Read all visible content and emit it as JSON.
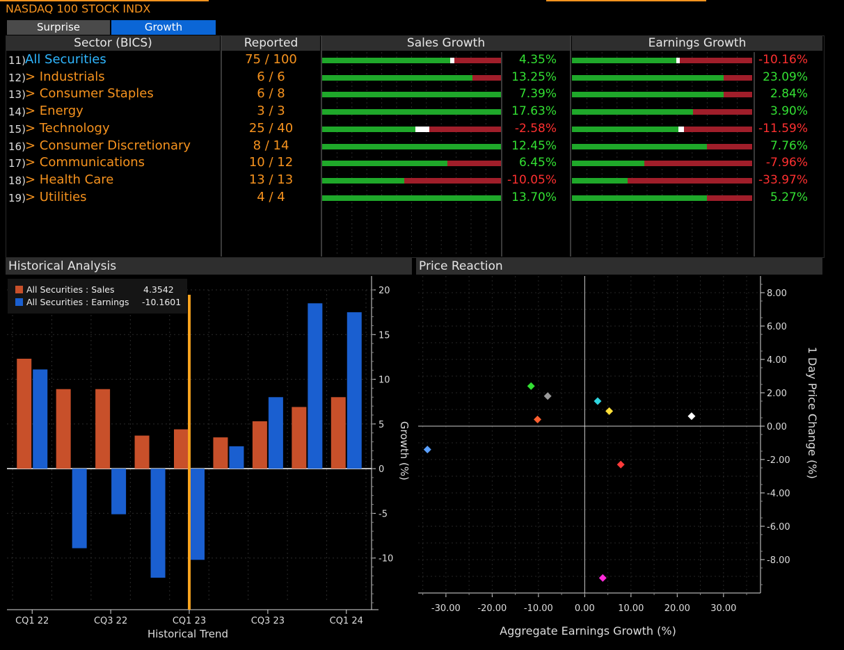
{
  "window": {
    "title": "NASDAQ 100 STOCK INDX"
  },
  "tabs": [
    {
      "label": "Surprise",
      "active": false
    },
    {
      "label": "Growth",
      "active": true
    }
  ],
  "table": {
    "headers": {
      "sector": "Sector (BICS)",
      "reported": "Reported",
      "sales": "Sales Growth",
      "earnings": "Earnings Growth"
    },
    "rows": [
      {
        "num": "11)",
        "name": "All Securities",
        "reported": "75 / 100",
        "sales": "4.35%",
        "sales_frac": 0.74,
        "sales_pos": true,
        "earn": "-10.16%",
        "earn_frac": 0.6,
        "earn_pos": false,
        "marker_s": true,
        "marker_e": true
      },
      {
        "num": "12)",
        "name": "> Industrials",
        "reported": "6 / 6",
        "sales": "13.25%",
        "sales_frac": 0.84,
        "sales_pos": true,
        "earn": "23.09%",
        "earn_frac": 0.84,
        "earn_pos": true
      },
      {
        "num": "13)",
        "name": "> Consumer Staples",
        "reported": "6 / 8",
        "sales": "7.39%",
        "sales_frac": 1.0,
        "sales_pos": true,
        "earn": "2.84%",
        "earn_frac": 0.84,
        "earn_pos": true
      },
      {
        "num": "14)",
        "name": "> Energy",
        "reported": "3 / 3",
        "sales": "17.63%",
        "sales_frac": 1.0,
        "sales_pos": true,
        "earn": "3.90%",
        "earn_frac": 0.67,
        "earn_pos": true
      },
      {
        "num": "15)",
        "name": "> Technology",
        "reported": "25 / 40",
        "sales": "-2.58%",
        "sales_frac": 0.6,
        "sales_pos": false,
        "earn": "-11.59%",
        "earn_frac": 0.62,
        "earn_pos": false,
        "marker_s": true,
        "marker_e": true
      },
      {
        "num": "16)",
        "name": "> Consumer Discretionary",
        "reported": "8 / 14",
        "sales": "12.45%",
        "sales_frac": 1.0,
        "sales_pos": true,
        "earn": "7.76%",
        "earn_frac": 0.75,
        "earn_pos": true
      },
      {
        "num": "17)",
        "name": "> Communications",
        "reported": "10 / 12",
        "sales": "6.45%",
        "sales_frac": 0.7,
        "sales_pos": true,
        "earn": "-7.96%",
        "earn_frac": 0.4,
        "earn_pos": false
      },
      {
        "num": "18)",
        "name": "> Health Care",
        "reported": "13 / 13",
        "sales": "-10.05%",
        "sales_frac": 0.46,
        "sales_pos": false,
        "earn": "-33.97%",
        "earn_frac": 0.31,
        "earn_pos": false
      },
      {
        "num": "19)",
        "name": "> Utilities",
        "reported": "4 / 4",
        "sales": "13.70%",
        "sales_frac": 1.0,
        "sales_pos": true,
        "earn": "5.27%",
        "earn_frac": 0.75,
        "earn_pos": true
      }
    ]
  },
  "historical": {
    "title": "Historical Analysis",
    "legend": [
      {
        "label": "All Securities : Sales",
        "value": "4.3542",
        "color": "#c8502a"
      },
      {
        "label": "All Securities : Earnings",
        "value": "-10.1601",
        "color": "#1a5fd0"
      }
    ],
    "xlabel": "Historical Trend",
    "ylabel": "Growth (%)"
  },
  "price_reaction": {
    "title": "Price Reaction",
    "xlabel": "Aggregate Earnings Growth (%)",
    "ylabel": "1 Day Price Change (%)"
  },
  "chart_data": [
    {
      "type": "bar",
      "categories": [
        "CQ1 22",
        "",
        "CQ3 22",
        "",
        "CQ1 23",
        "",
        "CQ3 23",
        "",
        "CQ1 24"
      ],
      "tick_labels": [
        "CQ1 22",
        "CQ3 22",
        "CQ1 23",
        "CQ3 23",
        "CQ1 24"
      ],
      "series": [
        {
          "name": "All Securities : Sales",
          "color": "#c8502a",
          "values": [
            12.3,
            8.9,
            8.9,
            3.7,
            4.4,
            3.5,
            5.3,
            6.9,
            8.0
          ]
        },
        {
          "name": "All Securities : Earnings",
          "color": "#1a5fd0",
          "values": [
            11.1,
            -8.9,
            -5.1,
            -12.2,
            null,
            2.5,
            8.0,
            18.5,
            17.5
          ]
        }
      ],
      "current_value_earnings": -10.2,
      "ylim": [
        -15,
        20
      ],
      "yticks": [
        -10,
        -5,
        0,
        5,
        10,
        15,
        20
      ],
      "marker_category_index": 4,
      "marker_color": "#f7a21e",
      "xlabel": "Historical Trend",
      "ylabel": "Growth (%)"
    },
    {
      "type": "scatter",
      "xlim": [
        -36,
        38
      ],
      "ylim": [
        -10,
        9
      ],
      "xticks": [
        -30,
        -20,
        -10,
        0,
        10,
        20,
        30
      ],
      "xtick_labels": [
        "-30.00",
        "-20.00",
        "-10.00",
        "0.00",
        "10.00",
        "20.00",
        "30.00"
      ],
      "yticks": [
        8,
        6,
        4,
        2,
        0,
        -2,
        -4,
        -6,
        -8
      ],
      "ytick_labels": [
        "8.00",
        "6.00",
        "4.00",
        "2.00",
        "0.00",
        "-2.00",
        "-4.00",
        "-6.00",
        "-8.00"
      ],
      "points": [
        {
          "x": -34.0,
          "y": -1.4,
          "color": "#5aa0ff"
        },
        {
          "x": -11.6,
          "y": 2.4,
          "color": "#33e033"
        },
        {
          "x": -8.0,
          "y": 1.8,
          "color": "#9a9a9a"
        },
        {
          "x": -10.2,
          "y": 0.4,
          "color": "#ff6030"
        },
        {
          "x": 2.8,
          "y": 1.5,
          "color": "#2fd6e0"
        },
        {
          "x": 5.3,
          "y": 0.9,
          "color": "#ffe03a"
        },
        {
          "x": 7.8,
          "y": -2.3,
          "color": "#ff3a3a"
        },
        {
          "x": 23.1,
          "y": 0.6,
          "color": "#ffffff"
        },
        {
          "x": 3.9,
          "y": -9.1,
          "color": "#ff2ad8"
        }
      ],
      "xlabel": "Aggregate Earnings Growth (%)",
      "ylabel": "1 Day Price Change (%)"
    }
  ],
  "colors": {
    "accent": "#f7931e",
    "active_tab": "#0b66d6",
    "positive": "#33e033",
    "negative": "#ff3030",
    "bar_green": "#1fa82a",
    "bar_red": "#a01e2a"
  }
}
